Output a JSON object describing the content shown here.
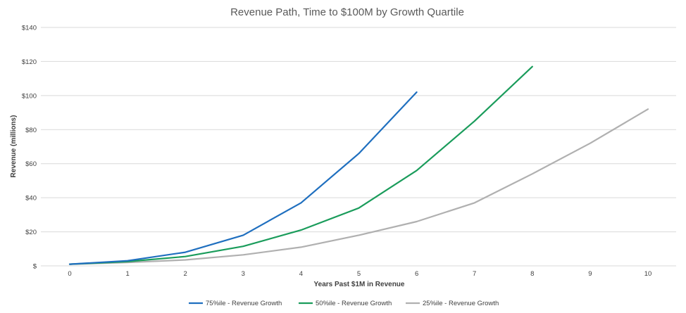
{
  "chart_data": {
    "type": "line",
    "title": "Revenue Path, Time to $100M by Growth Quartile",
    "xlabel": "Years Past $1M in Revenue",
    "ylabel": "Revenue (millions)",
    "x_ticks": [
      0,
      1,
      2,
      3,
      4,
      5,
      6,
      7,
      8,
      9,
      10
    ],
    "y_ticks": [
      "$",
      "$20",
      "$40",
      "$60",
      "$80",
      "$100",
      "$120",
      "$140"
    ],
    "xlim": [
      0,
      10
    ],
    "ylim": [
      0,
      140
    ],
    "grid": true,
    "legend_position": "bottom",
    "series": [
      {
        "name": "75%ile - Revenue Growth",
        "color": "#1f6fbf",
        "x": [
          0,
          1,
          2,
          3,
          4,
          5,
          6
        ],
        "values": [
          1,
          3,
          8,
          18,
          37,
          66,
          102
        ]
      },
      {
        "name": "50%ile - Revenue Growth",
        "color": "#1a9c5b",
        "x": [
          0,
          1,
          2,
          3,
          4,
          5,
          6,
          7,
          8
        ],
        "values": [
          1,
          2.5,
          5.5,
          11.5,
          21,
          34,
          56,
          85,
          117
        ]
      },
      {
        "name": "25%ile - Revenue Growth",
        "color": "#b0b0b0",
        "x": [
          0,
          1,
          2,
          3,
          4,
          5,
          6,
          7,
          8,
          9,
          10
        ],
        "values": [
          1,
          2,
          3.5,
          6.5,
          11,
          18,
          26,
          37,
          54,
          72,
          92
        ]
      }
    ]
  }
}
